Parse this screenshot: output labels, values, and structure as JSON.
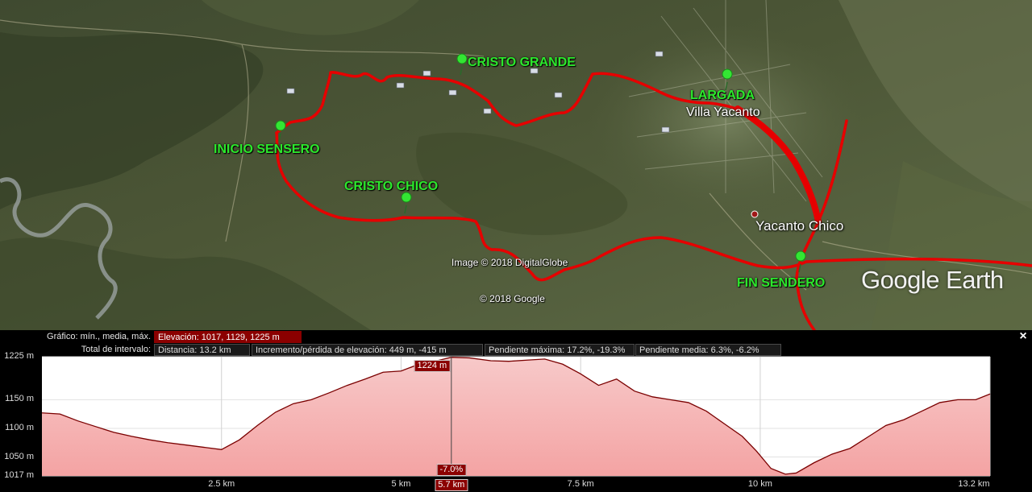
{
  "map": {
    "placemarks": [
      {
        "label": "CRISTO GRANDE"
      },
      {
        "label": "LARGADA"
      },
      {
        "label": "INICIO SENSERO"
      },
      {
        "label": "CRISTO CHICO"
      },
      {
        "label": "FIN SENDERO"
      }
    ],
    "towns": {
      "villa": "Villa Yacanto",
      "yacanto": "Yacanto Chico"
    },
    "credits": {
      "imagery": "Image © 2018 DigitalGlobe",
      "copyright": "© 2018 Google"
    },
    "logo": "Google Earth",
    "route_color": "#e60000",
    "pin_color": "#33e633",
    "label_color": "#2ce82c"
  },
  "profile": {
    "graph_label": "Gráfico: mín., media, máx.",
    "elevation": "Elevación: 1017, 1129, 1225 m",
    "range_label": "Total de intervalo:",
    "distance": "Distancia: 13.2 km",
    "gain_loss": "Incremento/pérdida de elevación: 449 m, -415 m",
    "max_slope": "Pendiente máxima: 17.2%, -19.3%",
    "avg_slope": "Pendiente media: 6.3%, -6.2%",
    "close": "×",
    "cursor": {
      "distance_km": 5.7,
      "elevation": "1224 m",
      "slope": "-7.0%",
      "x_label": "5.7 km"
    },
    "fill_color": "#f4a3a3",
    "line_color": "#7a0000"
  },
  "chart_data": {
    "type": "area",
    "xlabel": "",
    "ylabel": "",
    "xlim": [
      0,
      13.2
    ],
    "ylim": [
      1017,
      1225
    ],
    "y_ticks": [
      "1225 m",
      "1150 m",
      "1100 m",
      "1050 m",
      "1017 m"
    ],
    "y_tick_values": [
      1225,
      1150,
      1100,
      1050,
      1017
    ],
    "x_ticks": [
      "2.5 km",
      "5 km",
      "7.5 km",
      "10 km",
      "13.2 km"
    ],
    "x_tick_values": [
      2.5,
      5,
      7.5,
      10,
      13.2
    ],
    "x": [
      0,
      0.25,
      0.5,
      0.75,
      1.0,
      1.25,
      1.5,
      1.75,
      2.0,
      2.25,
      2.5,
      2.75,
      3.0,
      3.25,
      3.5,
      3.75,
      4.0,
      4.25,
      4.5,
      4.75,
      5.0,
      5.25,
      5.5,
      5.7,
      5.95,
      6.25,
      6.5,
      6.75,
      7.0,
      7.25,
      7.5,
      7.75,
      8.0,
      8.25,
      8.5,
      8.75,
      9.0,
      9.25,
      9.5,
      9.75,
      9.95,
      10.15,
      10.35,
      10.5,
      10.75,
      11.0,
      11.25,
      11.5,
      11.75,
      12.0,
      12.25,
      12.5,
      12.75,
      13.0,
      13.2
    ],
    "y": [
      1127,
      1125,
      1113,
      1103,
      1093,
      1086,
      1080,
      1075,
      1071,
      1067,
      1063,
      1080,
      1105,
      1128,
      1143,
      1150,
      1162,
      1175,
      1186,
      1198,
      1200,
      1212,
      1218,
      1224,
      1223,
      1218,
      1217,
      1219,
      1221,
      1212,
      1195,
      1175,
      1186,
      1165,
      1155,
      1150,
      1145,
      1130,
      1108,
      1086,
      1060,
      1030,
      1020,
      1022,
      1040,
      1055,
      1065,
      1085,
      1105,
      1115,
      1130,
      1145,
      1150,
      1150,
      1160
    ]
  }
}
